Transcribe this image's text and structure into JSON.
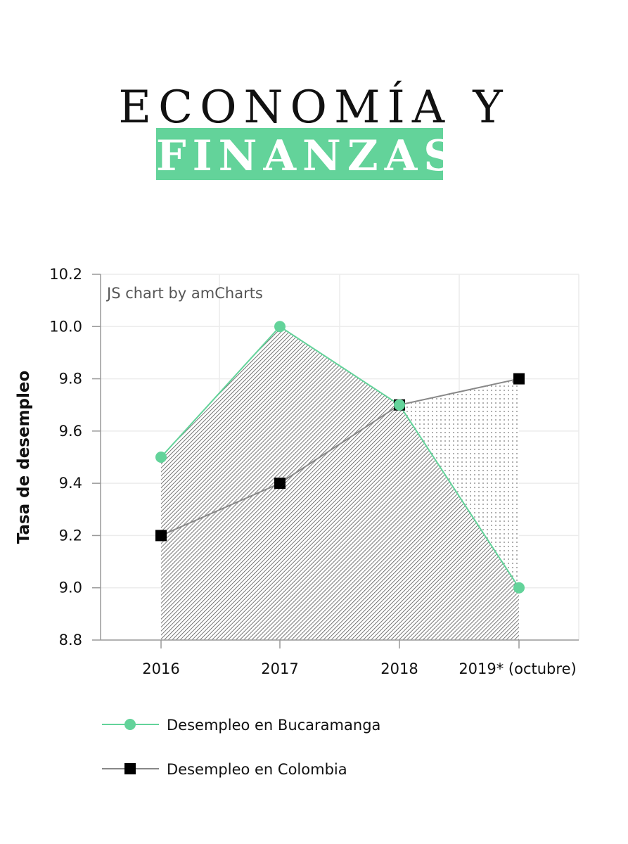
{
  "header": {
    "line1": "ECONOMÍA Y",
    "line2": "FINANZAS"
  },
  "colors": {
    "accent": "#63d39a",
    "colombia": "#888888",
    "marker_colombia": "#000000"
  },
  "chart_data": {
    "type": "line",
    "credit": "JS chart by amCharts",
    "ylabel": "Tasa de desempleo",
    "xlabel": "",
    "categories": [
      "2016",
      "2017",
      "2018",
      "2019* (octubre)"
    ],
    "ylim": [
      8.8,
      10.2
    ],
    "yticks": [
      "10.2",
      "10.0",
      "9.8",
      "9.6",
      "9.4",
      "9.2",
      "9.0",
      "8.8"
    ],
    "grid": true,
    "legend_position": "bottom",
    "series": [
      {
        "name": "Desempleo en Bucaramanga",
        "values": [
          9.5,
          10.0,
          9.7,
          9.0
        ],
        "marker": "circle",
        "fill": "diagonal-hatch"
      },
      {
        "name": "Desempleo en Colombia",
        "values": [
          9.2,
          9.4,
          9.7,
          9.8
        ],
        "marker": "square",
        "fill": "dots"
      }
    ]
  }
}
